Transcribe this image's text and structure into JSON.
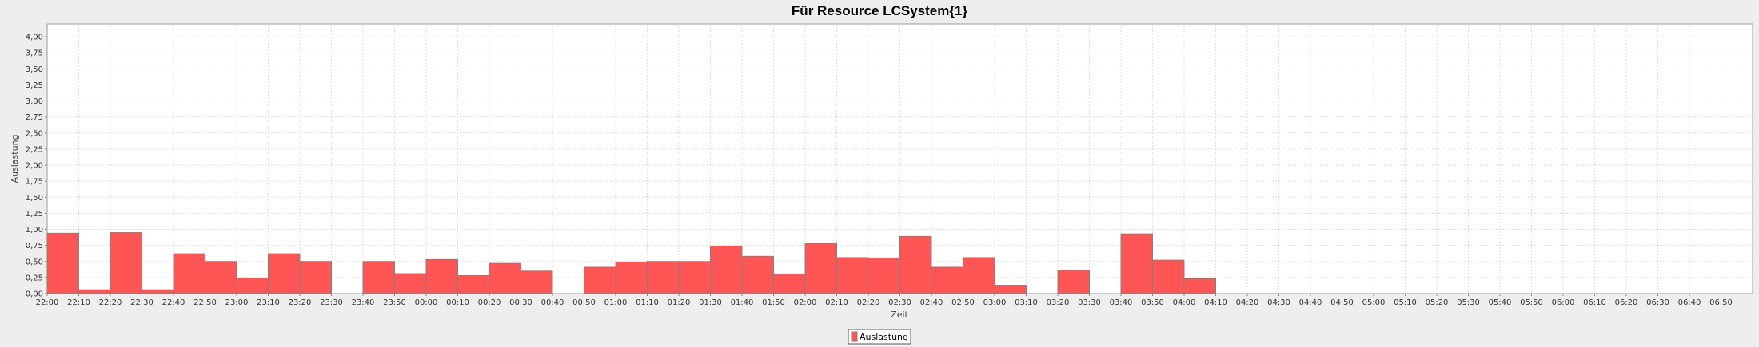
{
  "chart_data": {
    "type": "bar",
    "title": "Für Resource LCSystem{1}",
    "xlabel": "Zeit",
    "ylabel": "Auslastung",
    "ylim": [
      0,
      4.2
    ],
    "yticks": [
      "0,00",
      "0,25",
      "0,50",
      "0,75",
      "1,00",
      "1,25",
      "1,50",
      "1,75",
      "2,00",
      "2,25",
      "2,50",
      "2,75",
      "3,00",
      "3,25",
      "3,50",
      "3,75",
      "4,00"
    ],
    "grid": true,
    "legend": "bottom-center",
    "colors": {
      "bar": "#ff5555",
      "bar_stroke": "#808080"
    },
    "categories": [
      "22:00",
      "22:10",
      "22:20",
      "22:30",
      "22:40",
      "22:50",
      "23:00",
      "23:10",
      "23:20",
      "23:30",
      "23:40",
      "23:50",
      "00:00",
      "00:10",
      "00:20",
      "00:30",
      "00:40",
      "00:50",
      "01:00",
      "01:10",
      "01:20",
      "01:30",
      "01:40",
      "01:50",
      "02:00",
      "02:10",
      "02:20",
      "02:30",
      "02:40",
      "02:50",
      "03:00",
      "03:10",
      "03:20",
      "03:30",
      "03:40",
      "03:50",
      "04:00",
      "04:10",
      "04:20",
      "04:30",
      "04:40",
      "04:50",
      "05:00",
      "05:10",
      "05:20",
      "05:30",
      "05:40",
      "05:50",
      "06:00",
      "06:10",
      "06:20",
      "06:30",
      "06:40",
      "06:50"
    ],
    "series": [
      {
        "name": "Auslastung",
        "values": [
          0.94,
          0.06,
          0.95,
          0.06,
          0.62,
          0.5,
          0.24,
          0.62,
          0.5,
          0,
          0.5,
          0.31,
          0.53,
          0.28,
          0.47,
          0.35,
          0,
          0.41,
          0.49,
          0.5,
          0.5,
          0.74,
          0.58,
          0.3,
          0.78,
          0.56,
          0.55,
          0.89,
          0.41,
          0.56,
          0.13,
          0,
          0.36,
          0,
          0.93,
          0.52,
          0.23,
          0,
          0,
          0,
          0,
          0,
          0,
          0,
          0,
          0,
          0,
          0,
          0,
          0,
          0,
          0,
          0,
          0
        ]
      }
    ]
  }
}
